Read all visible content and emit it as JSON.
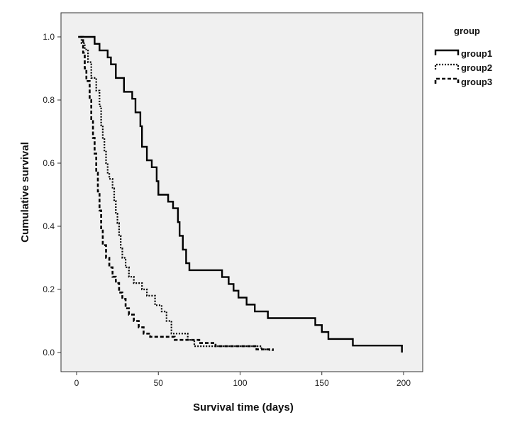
{
  "chart_data": {
    "type": "line",
    "subtype": "kaplan-meier step",
    "xlabel": "Survival time (days)",
    "ylabel": "Cumulative survival",
    "xlim": [
      0,
      200
    ],
    "ylim": [
      0,
      1.0
    ],
    "x_ticks": [
      0,
      50,
      100,
      150,
      200
    ],
    "y_ticks": [
      0.0,
      0.2,
      0.4,
      0.6,
      0.8,
      1.0
    ],
    "y_tick_labels": [
      "0.0",
      "0.2",
      "0.4",
      "0.6",
      "0.8",
      "1.0"
    ],
    "grid": false,
    "plot_background": "#f0f0f0",
    "legend": {
      "title": "group",
      "placement": "right"
    },
    "series": [
      {
        "name": "group1",
        "style": "solid",
        "color": "#000000",
        "points": [
          [
            1,
            1.0
          ],
          [
            11,
            0.978
          ],
          [
            14,
            0.957
          ],
          [
            19,
            0.935
          ],
          [
            21,
            0.913
          ],
          [
            24,
            0.87
          ],
          [
            29,
            0.826
          ],
          [
            34,
            0.804
          ],
          [
            36,
            0.761
          ],
          [
            39,
            0.717
          ],
          [
            40,
            0.652
          ],
          [
            43,
            0.609
          ],
          [
            46,
            0.587
          ],
          [
            49,
            0.543
          ],
          [
            50,
            0.5
          ],
          [
            56,
            0.478
          ],
          [
            59,
            0.457
          ],
          [
            62,
            0.413
          ],
          [
            63,
            0.37
          ],
          [
            65,
            0.326
          ],
          [
            67,
            0.283
          ],
          [
            69,
            0.261
          ],
          [
            89,
            0.239
          ],
          [
            93,
            0.217
          ],
          [
            96,
            0.196
          ],
          [
            99,
            0.174
          ],
          [
            104,
            0.152
          ],
          [
            109,
            0.13
          ],
          [
            117,
            0.109
          ],
          [
            146,
            0.087
          ],
          [
            150,
            0.065
          ],
          [
            154,
            0.043
          ],
          [
            169,
            0.022
          ],
          [
            199,
            0.0
          ]
        ]
      },
      {
        "name": "group2",
        "style": "dotted",
        "color": "#000000",
        "points": [
          [
            1,
            1.0
          ],
          [
            3,
            0.98
          ],
          [
            5,
            0.96
          ],
          [
            7,
            0.92
          ],
          [
            9,
            0.87
          ],
          [
            12,
            0.83
          ],
          [
            14,
            0.78
          ],
          [
            15,
            0.72
          ],
          [
            16,
            0.68
          ],
          [
            17,
            0.64
          ],
          [
            18,
            0.6
          ],
          [
            19,
            0.57
          ],
          [
            20,
            0.55
          ],
          [
            22,
            0.52
          ],
          [
            23,
            0.48
          ],
          [
            24,
            0.44
          ],
          [
            25,
            0.41
          ],
          [
            26,
            0.37
          ],
          [
            27,
            0.33
          ],
          [
            28,
            0.3
          ],
          [
            30,
            0.27
          ],
          [
            32,
            0.24
          ],
          [
            35,
            0.22
          ],
          [
            40,
            0.2
          ],
          [
            43,
            0.18
          ],
          [
            48,
            0.15
          ],
          [
            52,
            0.13
          ],
          [
            55,
            0.1
          ],
          [
            58,
            0.06
          ],
          [
            68,
            0.04
          ],
          [
            72,
            0.02
          ],
          [
            95,
            0.02
          ],
          [
            113,
            0.01
          ],
          [
            118,
            0.005
          ]
        ]
      },
      {
        "name": "group3",
        "style": "dashed",
        "color": "#000000",
        "points": [
          [
            2,
            1.0
          ],
          [
            4,
            0.95
          ],
          [
            5,
            0.9
          ],
          [
            6,
            0.86
          ],
          [
            8,
            0.8
          ],
          [
            9,
            0.74
          ],
          [
            10,
            0.68
          ],
          [
            11,
            0.63
          ],
          [
            12,
            0.57
          ],
          [
            13,
            0.51
          ],
          [
            14,
            0.45
          ],
          [
            15,
            0.39
          ],
          [
            16,
            0.34
          ],
          [
            18,
            0.3
          ],
          [
            20,
            0.27
          ],
          [
            22,
            0.24
          ],
          [
            24,
            0.22
          ],
          [
            26,
            0.19
          ],
          [
            28,
            0.17
          ],
          [
            30,
            0.14
          ],
          [
            32,
            0.12
          ],
          [
            35,
            0.1
          ],
          [
            38,
            0.08
          ],
          [
            41,
            0.06
          ],
          [
            45,
            0.05
          ],
          [
            60,
            0.04
          ],
          [
            75,
            0.03
          ],
          [
            85,
            0.02
          ],
          [
            110,
            0.01
          ],
          [
            120,
            0.005
          ]
        ]
      }
    ]
  }
}
